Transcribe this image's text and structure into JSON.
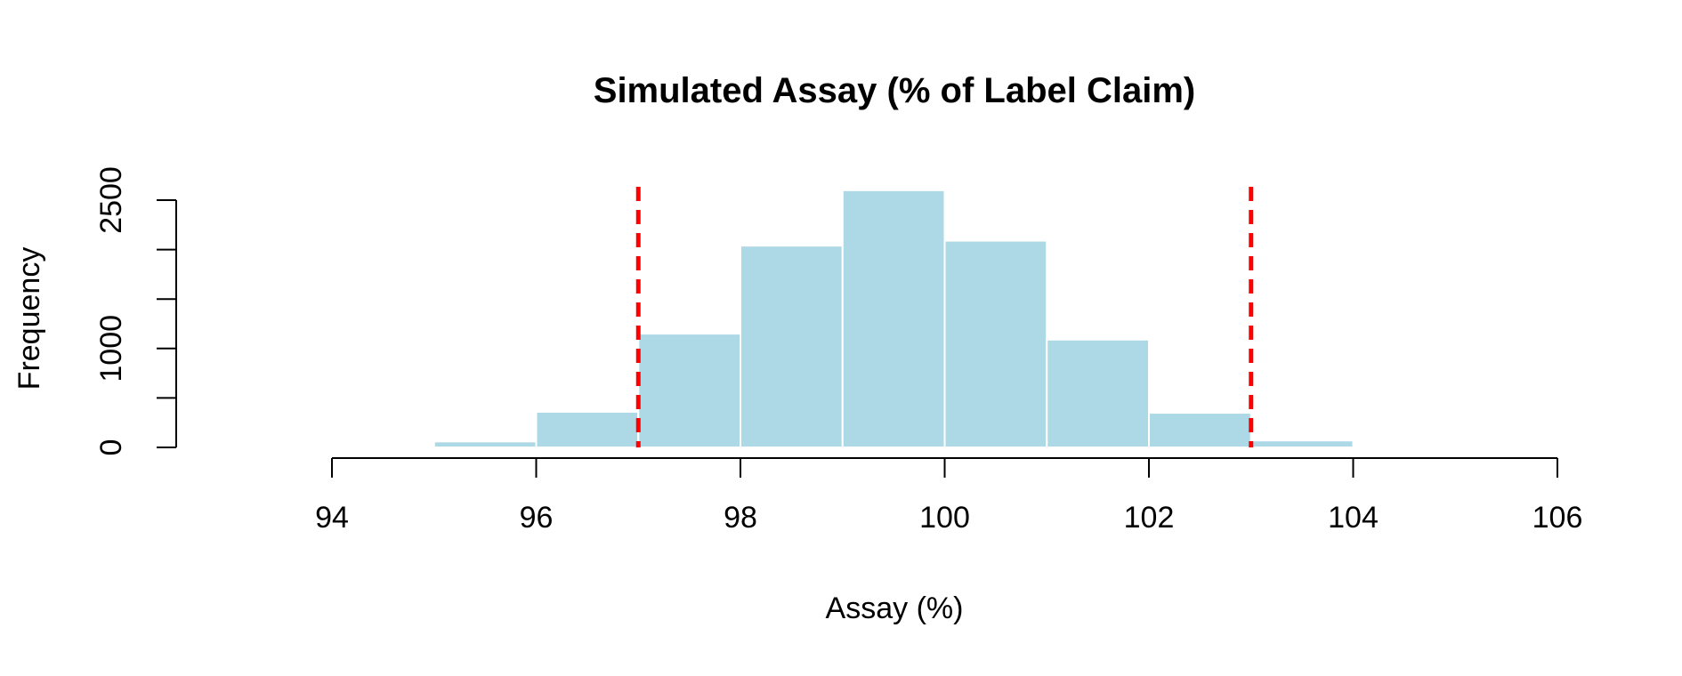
{
  "chart_data": {
    "type": "bar",
    "title": "Simulated Assay (% of Label Claim)",
    "xlabel": "Assay (%)",
    "ylabel": "Frequency",
    "xlim": [
      94,
      106
    ],
    "ylim": [
      0,
      2500
    ],
    "x_ticks": [
      "94",
      "96",
      "98",
      "100",
      "102",
      "104",
      "106"
    ],
    "y_ticks": [
      "0",
      "1000",
      "2500"
    ],
    "bins": [
      {
        "x0": 95,
        "x1": 96,
        "count": 60
      },
      {
        "x0": 96,
        "x1": 97,
        "count": 360
      },
      {
        "x0": 97,
        "x1": 98,
        "count": 1150
      },
      {
        "x0": 98,
        "x1": 99,
        "count": 2040
      },
      {
        "x0": 99,
        "x1": 100,
        "count": 2600
      },
      {
        "x0": 100,
        "x1": 101,
        "count": 2090
      },
      {
        "x0": 101,
        "x1": 102,
        "count": 1090
      },
      {
        "x0": 102,
        "x1": 103,
        "count": 350
      },
      {
        "x0": 103,
        "x1": 104,
        "count": 70
      }
    ],
    "reference_lines": [
      97,
      103
    ],
    "colors": {
      "bar_fill": "#add8e6",
      "bar_border": "#ffffff",
      "reference_line": "#ff0000",
      "axis": "#000000"
    },
    "grid": false,
    "legend": "none"
  }
}
